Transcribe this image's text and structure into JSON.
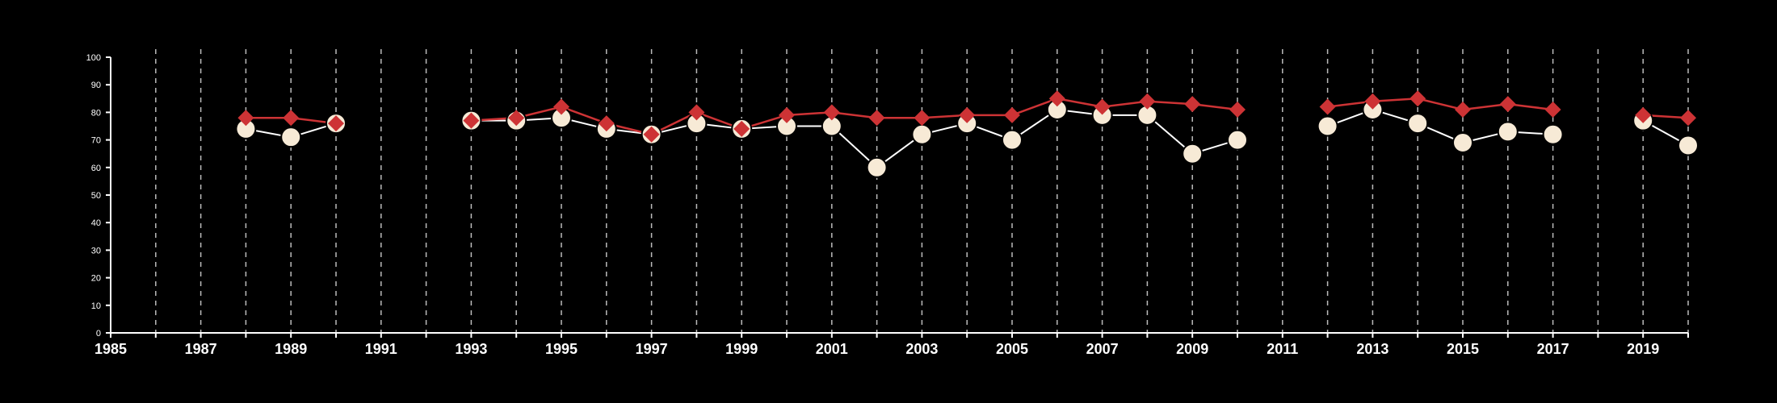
{
  "chart_data": {
    "type": "line",
    "title": "",
    "xlabel": "",
    "ylabel": "",
    "xlim": [
      1985,
      2020
    ],
    "ylim": [
      0,
      100
    ],
    "x_ticks": [
      1985,
      1987,
      1989,
      1991,
      1993,
      1995,
      1997,
      1999,
      2001,
      2003,
      2005,
      2007,
      2009,
      2011,
      2013,
      2015,
      2017,
      2019
    ],
    "y_ticks": [
      0,
      10,
      20,
      30,
      40,
      50,
      60,
      70,
      80,
      90,
      100
    ],
    "grid": "vertical-dashed",
    "colors": {
      "background": "#000000",
      "axis": "#ffffff",
      "grid": "#bbbbbb",
      "series_red": "#cd3335",
      "series_white_fill": "#f7ead6",
      "series_white_line": "#ffffff"
    },
    "series": [
      {
        "marker": "circle",
        "color": "#f7ead6",
        "points": [
          [
            1988,
            74
          ],
          [
            1989,
            71
          ],
          [
            1990,
            76
          ],
          [
            1991,
            null
          ],
          [
            1992,
            null
          ],
          [
            1993,
            77
          ],
          [
            1994,
            77
          ],
          [
            1995,
            78
          ],
          [
            1996,
            74
          ],
          [
            1997,
            72
          ],
          [
            1998,
            76
          ],
          [
            1999,
            74
          ],
          [
            2000,
            75
          ],
          [
            2001,
            75
          ],
          [
            2002,
            60
          ],
          [
            2003,
            72
          ],
          [
            2004,
            76
          ],
          [
            2005,
            70
          ],
          [
            2006,
            81
          ],
          [
            2007,
            79
          ],
          [
            2008,
            79
          ],
          [
            2009,
            65
          ],
          [
            2010,
            70
          ],
          [
            2011,
            null
          ],
          [
            2012,
            75
          ],
          [
            2013,
            81
          ],
          [
            2014,
            76
          ],
          [
            2015,
            69
          ],
          [
            2016,
            73
          ],
          [
            2017,
            72
          ],
          [
            2018,
            null
          ],
          [
            2019,
            77
          ],
          [
            2020,
            68
          ]
        ]
      },
      {
        "marker": "diamond",
        "color": "#cd3335",
        "points": [
          [
            1988,
            78
          ],
          [
            1989,
            78
          ],
          [
            1990,
            76
          ],
          [
            1991,
            null
          ],
          [
            1992,
            null
          ],
          [
            1993,
            77
          ],
          [
            1994,
            78
          ],
          [
            1995,
            82
          ],
          [
            1996,
            76
          ],
          [
            1997,
            72
          ],
          [
            1998,
            80
          ],
          [
            1999,
            74
          ],
          [
            2000,
            79
          ],
          [
            2001,
            80
          ],
          [
            2002,
            78
          ],
          [
            2003,
            78
          ],
          [
            2004,
            79
          ],
          [
            2005,
            79
          ],
          [
            2006,
            85
          ],
          [
            2007,
            82
          ],
          [
            2008,
            84
          ],
          [
            2009,
            83
          ],
          [
            2010,
            81
          ],
          [
            2011,
            null
          ],
          [
            2012,
            82
          ],
          [
            2013,
            84
          ],
          [
            2014,
            85
          ],
          [
            2015,
            81
          ],
          [
            2016,
            83
          ],
          [
            2017,
            81
          ],
          [
            2018,
            null
          ],
          [
            2019,
            79
          ],
          [
            2020,
            78
          ]
        ]
      }
    ]
  }
}
